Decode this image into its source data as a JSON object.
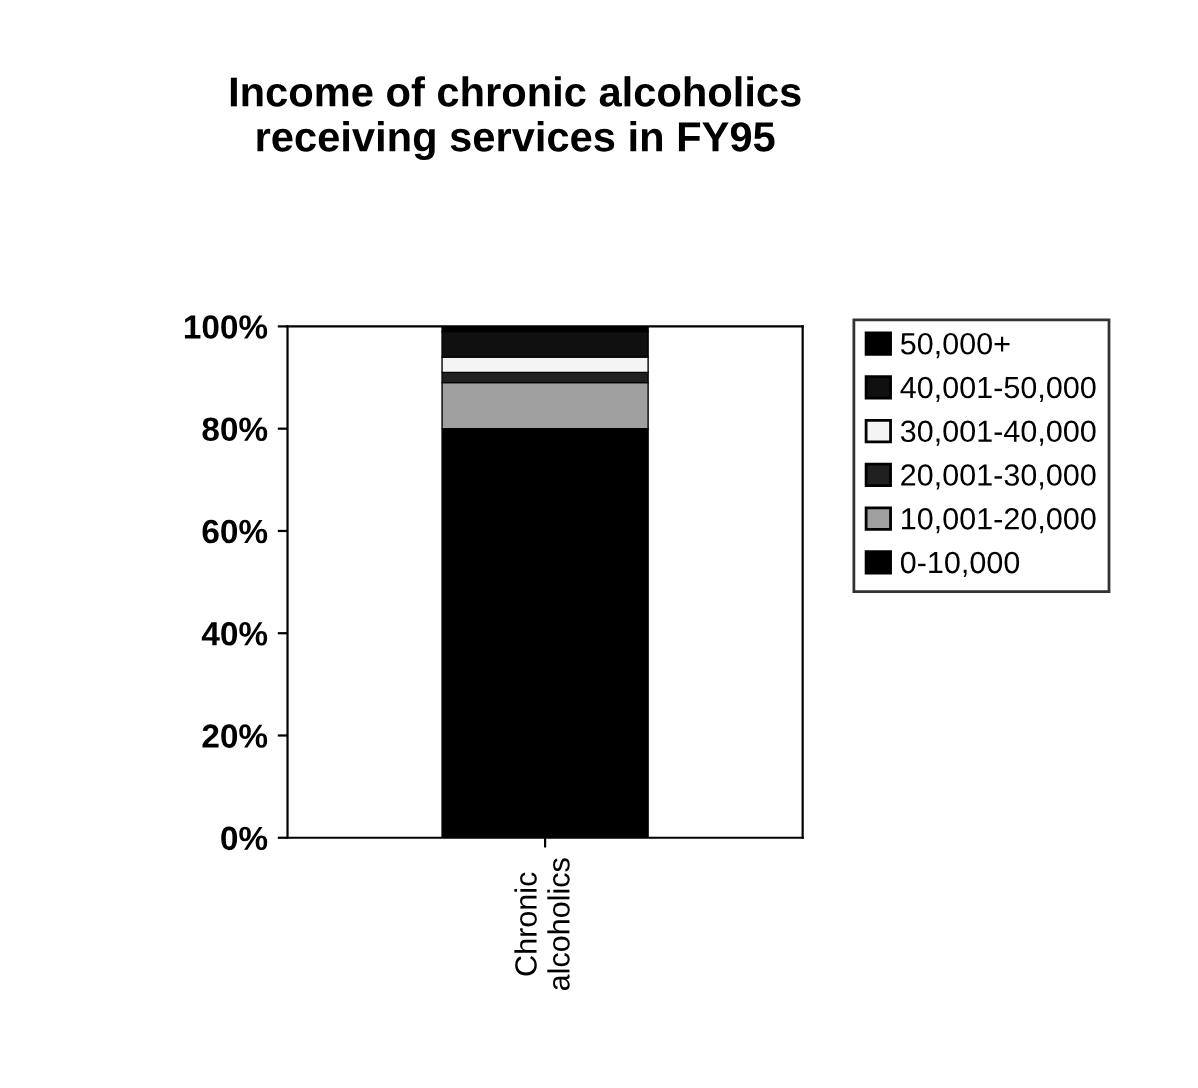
{
  "chart_data": {
    "type": "bar",
    "stacked": true,
    "title": "Income of chronic alcoholics\nreceiving services in FY95",
    "categories": [
      "Chronic\nalcoholics"
    ],
    "series": [
      {
        "name": "0-10,000",
        "color": "#000000",
        "values": [
          80
        ]
      },
      {
        "name": "10,001-20,000",
        "color": "#a0a0a0",
        "values": [
          9
        ]
      },
      {
        "name": "20,001-30,000",
        "color": "#202020",
        "values": [
          2
        ]
      },
      {
        "name": "30,001-40,000",
        "color": "#f4f4f4",
        "values": [
          3
        ]
      },
      {
        "name": "40,001-50,000",
        "color": "#101010",
        "values": [
          5
        ]
      },
      {
        "name": "50,000+",
        "color": "#000000",
        "values": [
          1
        ]
      }
    ],
    "ylim": [
      0,
      100
    ],
    "yticks": [
      {
        "value": 0,
        "label": "0%"
      },
      {
        "value": 20,
        "label": "20%"
      },
      {
        "value": 40,
        "label": "40%"
      },
      {
        "value": 60,
        "label": "60%"
      },
      {
        "value": 80,
        "label": "80%"
      },
      {
        "value": 100,
        "label": "100%"
      }
    ],
    "legend": "right",
    "grid": false
  }
}
